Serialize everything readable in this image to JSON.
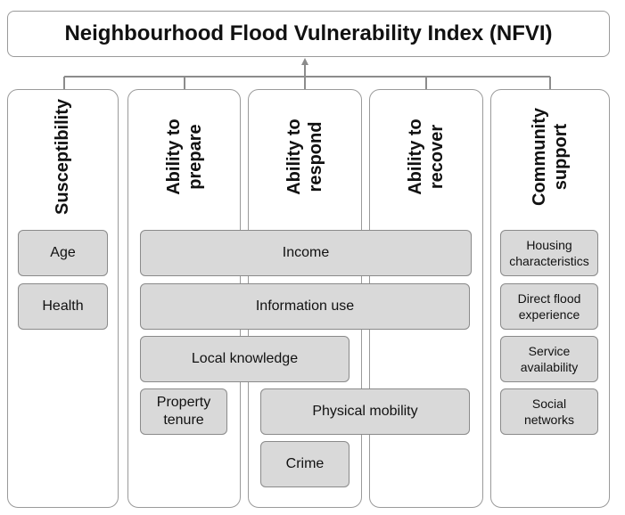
{
  "title": "Neighbourhood Flood Vulnerability Index (NFVI)",
  "columns": [
    {
      "label": "Susceptibility"
    },
    {
      "label": "Ability to\nprepare"
    },
    {
      "label": "Ability to\nrespond"
    },
    {
      "label": "Ability to\nrecover"
    },
    {
      "label": "Community\nsupport"
    }
  ],
  "indicators": {
    "age": "Age",
    "health": "Health",
    "income": "Income",
    "information_use": "Information use",
    "local_knowledge": "Local knowledge",
    "property_tenure": "Property\ntenure",
    "physical_mobility": "Physical mobility",
    "crime": "Crime",
    "housing_characteristics": "Housing\ncharacteristics",
    "direct_flood_experience": "Direct flood\nexperience",
    "service_availability": "Service\navailability",
    "social_networks": "Social\nnetworks"
  },
  "colors": {
    "box_border": "#9a9a9a",
    "indicator_fill": "#d9d9d9",
    "connector": "#8c8c8c"
  }
}
